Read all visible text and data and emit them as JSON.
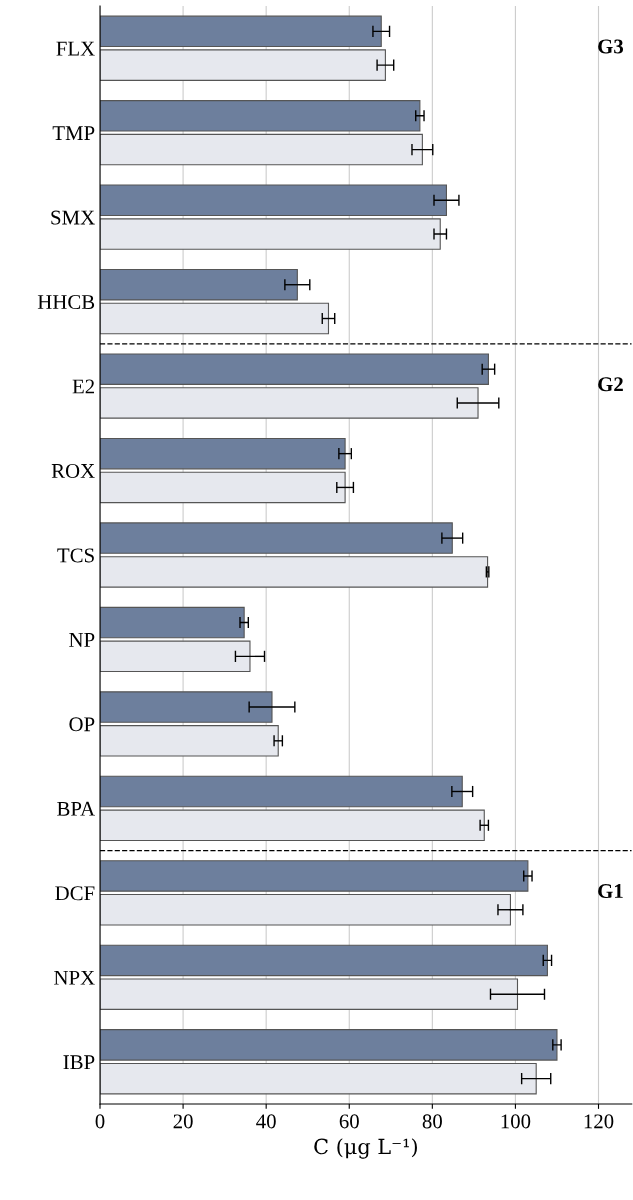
{
  "chart_data": {
    "type": "bar",
    "orientation": "horizontal",
    "xlabel": "C (μg L⁻¹)",
    "categories": [
      "FLX",
      "TMP",
      "SMX",
      "HHCB",
      "E2",
      "ROX",
      "TCS",
      "NP",
      "OP",
      "BPA",
      "DCF",
      "NPX",
      "IBP"
    ],
    "series": [
      {
        "color": "#6d7f9d",
        "values": [
          67.7,
          77,
          83.4,
          47.5,
          93.5,
          59,
          84.8,
          34.7,
          41.4,
          87.2,
          103,
          107.7,
          110
        ],
        "errors": [
          2,
          1,
          3,
          3,
          1.5,
          1.5,
          2.5,
          1,
          5.5,
          2.5,
          1,
          1,
          1
        ]
      },
      {
        "color": "#e6e8ee",
        "values": [
          68.7,
          77.6,
          81.9,
          55,
          91,
          59,
          93.3,
          36.1,
          42.9,
          92.5,
          98.8,
          100.5,
          105
        ],
        "errors": [
          2,
          2.5,
          1.5,
          1.5,
          5,
          2,
          0.3,
          3.5,
          1,
          1,
          3,
          6.5,
          3.5
        ]
      }
    ],
    "xlim": [
      0,
      128
    ],
    "xticks": [
      0,
      20,
      40,
      60,
      80,
      100,
      120
    ],
    "grid": "x",
    "annotations": [
      "G3",
      "G2",
      "G1"
    ]
  }
}
